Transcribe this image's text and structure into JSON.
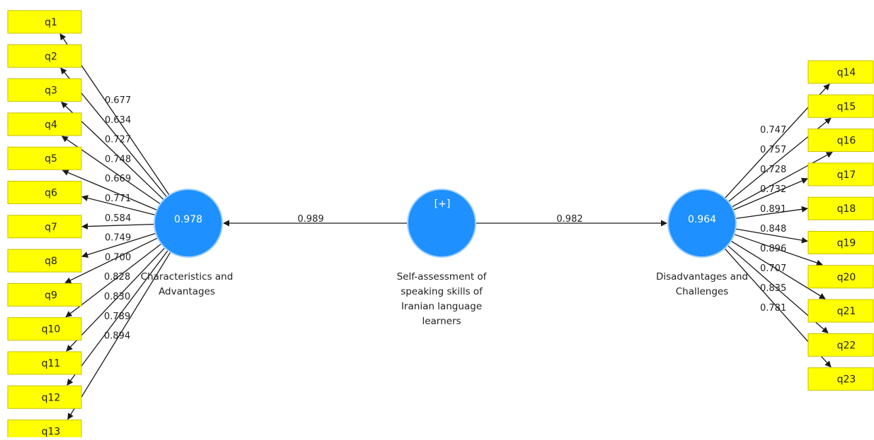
{
  "colors": {
    "latent_fill": "#1e90ff",
    "latent_stroke": "#9fd0ff",
    "indicator_fill": "#ffff00",
    "edge": "#1a1a1a"
  },
  "second_order": {
    "name_lines": [
      "Self-assessment of",
      "speaking skills of",
      "Iranian language",
      "learners"
    ],
    "expand_marker": "[+]"
  },
  "constructs": {
    "left": {
      "name_lines": [
        "Characteristics and",
        "Advantages"
      ],
      "r_squared": "0.978",
      "path_coefficient": "0.989",
      "indicators": [
        "q1",
        "q2",
        "q3",
        "q4",
        "q5",
        "q6",
        "q7",
        "q8",
        "q9",
        "q10",
        "q11",
        "q12",
        "q13"
      ],
      "loadings": [
        "0.677",
        "0.634",
        "0.727",
        "0.748",
        "0.669",
        "0.771",
        "0.584",
        "0.749",
        "0.700",
        "0.828",
        "0.830",
        "0.789",
        "0.894"
      ]
    },
    "right": {
      "name_lines": [
        "Disadvantages and",
        "Challenges"
      ],
      "r_squared": "0.964",
      "path_coefficient": "0.982",
      "indicators": [
        "q14",
        "q15",
        "q16",
        "q17",
        "q18",
        "q19",
        "q20",
        "q21",
        "q22",
        "q23"
      ],
      "loadings": [
        "0.747",
        "0.757",
        "0.728",
        "0.732",
        "0.891",
        "0.848",
        "0.896",
        "0.707",
        "0.835",
        "0.781"
      ]
    }
  }
}
